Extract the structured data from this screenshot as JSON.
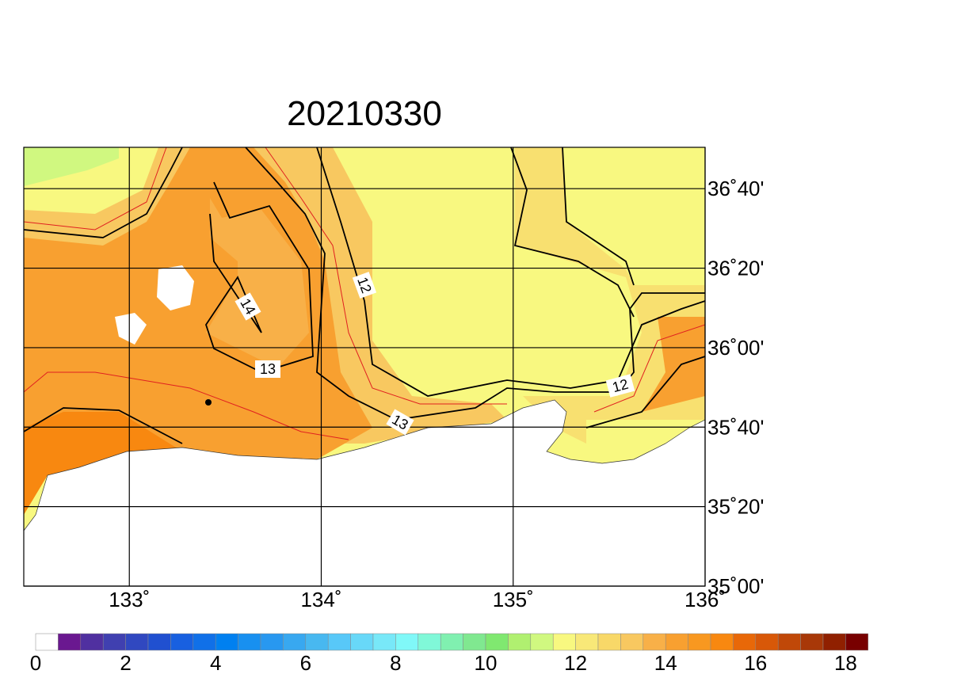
{
  "title": "20210330",
  "map": {
    "xlim": [
      132.45,
      136
    ],
    "ylim": [
      35,
      36.84
    ],
    "lon_ticks": [
      {
        "value": 133,
        "label": "133˚"
      },
      {
        "value": 134,
        "label": "134˚"
      },
      {
        "value": 135,
        "label": "135˚"
      },
      {
        "value": 136,
        "label": "136˚"
      }
    ],
    "lat_ticks": [
      {
        "value": 35,
        "label": "35˚00'"
      },
      {
        "value": 35.3333,
        "label": "35˚20'"
      },
      {
        "value": 35.6667,
        "label": "35˚40'"
      },
      {
        "value": 36,
        "label": "36˚00'"
      },
      {
        "value": 36.3333,
        "label": "36˚20'"
      },
      {
        "value": 36.6667,
        "label": "36˚40'"
      }
    ],
    "contour_labels": [
      "14",
      "12",
      "13",
      "13",
      "12"
    ]
  },
  "colorbar": {
    "bins": [
      0,
      0.5,
      1,
      1.5,
      2,
      2.5,
      3,
      3.5,
      4,
      4.5,
      5,
      5.5,
      6,
      6.5,
      7,
      7.5,
      8,
      8.5,
      9,
      9.5,
      10,
      10.5,
      11,
      11.5,
      12,
      12.5,
      13,
      13.5,
      14,
      14.5,
      15,
      15.5,
      16,
      16.5,
      17,
      17.5,
      18,
      18.5
    ],
    "colors": [
      "#ffffff",
      "#6a1890",
      "#5030a0",
      "#4040b0",
      "#3048c0",
      "#2050d0",
      "#1860e0",
      "#1070e8",
      "#0080f0",
      "#1890f0",
      "#2898f0",
      "#38a8f0",
      "#48b8f0",
      "#58c8f8",
      "#68d8f8",
      "#78e8f8",
      "#80f8f8",
      "#80f8d8",
      "#80f0b0",
      "#80e890",
      "#80e870",
      "#b0f070",
      "#d0f880",
      "#f8f880",
      "#f8e878",
      "#f8d868",
      "#f8c860",
      "#f8b048",
      "#f8a030",
      "#f89820",
      "#f88810",
      "#e86808",
      "#d85808",
      "#c04808",
      "#a83808",
      "#902000",
      "#780000"
    ],
    "ticks": [
      0,
      2,
      4,
      6,
      8,
      10,
      12,
      14,
      16,
      18
    ]
  }
}
